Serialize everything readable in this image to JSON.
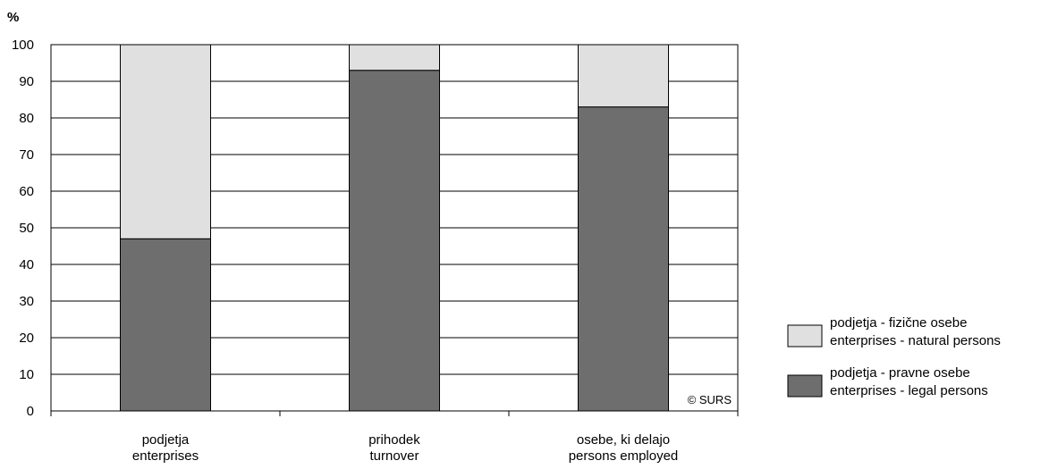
{
  "chart_data": {
    "type": "bar",
    "stacked": true,
    "unit_label": "%",
    "ylim": [
      0,
      100
    ],
    "y_ticks": [
      0,
      10,
      20,
      30,
      40,
      50,
      60,
      70,
      80,
      90,
      100
    ],
    "grid": true,
    "legend_position": "right",
    "categories": [
      {
        "line1": "podjetja",
        "line2": "enterprises"
      },
      {
        "line1": "prihodek",
        "line2": "turnover"
      },
      {
        "line1": "osebe, ki delajo",
        "line2": "persons employed"
      }
    ],
    "series": [
      {
        "name_line1": "podjetja - pravne osebe",
        "name_line2": "enterprises - legal persons",
        "color": "#6e6e6e",
        "values": [
          47,
          93,
          83
        ]
      },
      {
        "name_line1": "podjetja - fizične osebe",
        "name_line2": "enterprises -  natural persons",
        "color": "#e0e0e0",
        "values": [
          53,
          7,
          17
        ]
      }
    ],
    "watermark": "© SURS"
  }
}
